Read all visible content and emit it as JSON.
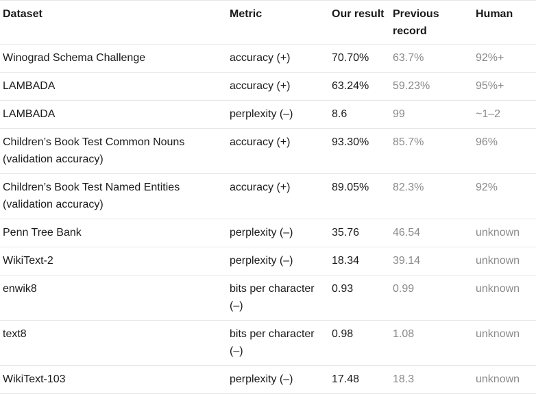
{
  "table": {
    "headers": {
      "dataset": "Dataset",
      "metric": "Metric",
      "our_result": "Our result",
      "previous_record": "Previous record",
      "human": "Human"
    },
    "rows": [
      {
        "dataset": "Winograd Schema Challenge",
        "metric": "accuracy (+)",
        "our_result": "70.70%",
        "previous_record": "63.7%",
        "human": "92%+"
      },
      {
        "dataset": "LAMBADA",
        "metric": "accuracy (+)",
        "our_result": "63.24%",
        "previous_record": "59.23%",
        "human": "95%+"
      },
      {
        "dataset": "LAMBADA",
        "metric": "perplexity (–)",
        "our_result": "8.6",
        "previous_record": "99",
        "human": "~1–2"
      },
      {
        "dataset": "Children’s Book Test Common Nouns (validation accuracy)",
        "metric": "accuracy (+)",
        "our_result": "93.30%",
        "previous_record": "85.7%",
        "human": "96%"
      },
      {
        "dataset": "Children’s Book Test Named Entities (validation accuracy)",
        "metric": "accuracy (+)",
        "our_result": "89.05%",
        "previous_record": "82.3%",
        "human": "92%"
      },
      {
        "dataset": "Penn Tree Bank",
        "metric": "perplexity (–)",
        "our_result": "35.76",
        "previous_record": "46.54",
        "human": "unknown"
      },
      {
        "dataset": "WikiText-2",
        "metric": "perplexity (–)",
        "our_result": "18.34",
        "previous_record": "39.14",
        "human": "unknown"
      },
      {
        "dataset": "enwik8",
        "metric": "bits per character (–)",
        "our_result": "0.93",
        "previous_record": "0.99",
        "human": "unknown"
      },
      {
        "dataset": "text8",
        "metric": "bits per character (–)",
        "our_result": "0.98",
        "previous_record": "1.08",
        "human": "unknown"
      },
      {
        "dataset": "WikiText-103",
        "metric": "perplexity (–)",
        "our_result": "17.48",
        "previous_record": "18.3",
        "human": "unknown"
      }
    ]
  }
}
